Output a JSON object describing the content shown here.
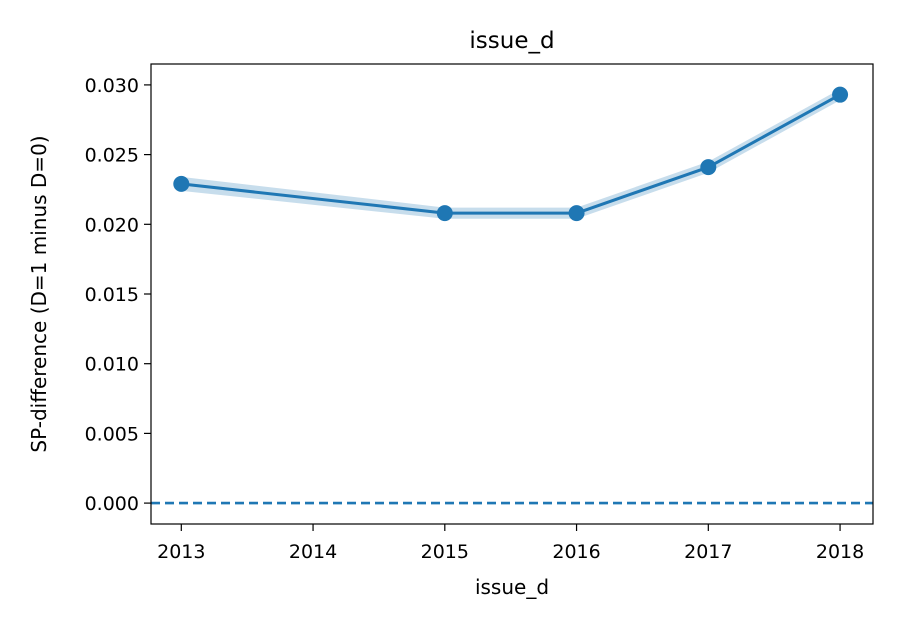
{
  "chart_data": {
    "type": "line",
    "title": "issue_d",
    "xlabel": "issue_d",
    "ylabel": "SP-difference (D=1 minus D=0)",
    "x": [
      2013,
      2015,
      2016,
      2017,
      2018
    ],
    "series": [
      {
        "values": [
          0.0229,
          0.0208,
          0.0208,
          0.0241,
          0.0293
        ],
        "band_lower": [
          0.0224,
          0.0204,
          0.0204,
          0.0237,
          0.0289
        ],
        "band_upper": [
          0.0234,
          0.0212,
          0.0212,
          0.0245,
          0.0297
        ]
      }
    ],
    "reference_line": {
      "y": 0,
      "style": "dashed"
    },
    "xlim": [
      2012.77,
      2018.25
    ],
    "ylim": [
      -0.0015,
      0.0315
    ],
    "xticks": [
      "2013",
      "2014",
      "2015",
      "2016",
      "2017",
      "2018"
    ],
    "yticks": [
      "0.000",
      "0.005",
      "0.010",
      "0.015",
      "0.020",
      "0.025",
      "0.030"
    ],
    "grid": false,
    "colors": {
      "line": "#1f77b4",
      "band": "#1f77b4",
      "reference": "#1f77b4"
    }
  }
}
